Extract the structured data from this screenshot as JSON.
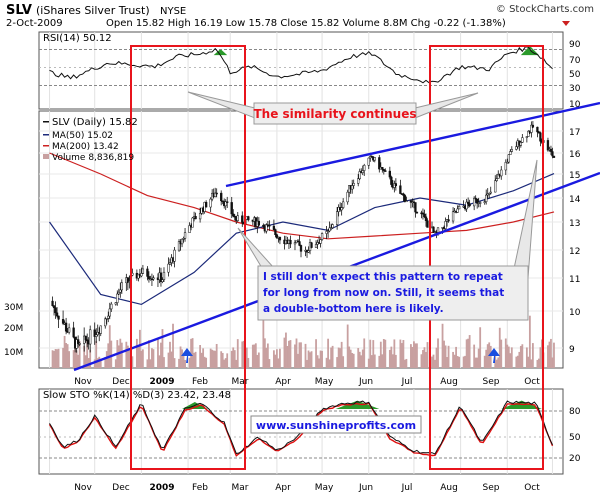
{
  "header": {
    "ticker": "SLV",
    "name": "(iShares Silver Trust)",
    "exchange": "NYSE",
    "watermark": "© StockCharts.com",
    "date": "2-Oct-2009",
    "quote": "Open 15.82  High 16.19  Low 15.78  Close 15.82  Volume 8.8M  Chg -0.22 (-1.38%)"
  },
  "rsi": {
    "label": "RSI(14) 50.12",
    "ticks": [
      "90",
      "70",
      "50",
      "30",
      "10"
    ]
  },
  "price": {
    "legend": {
      "main": "SLV (Daily) 15.82",
      "ma50": "MA(50) 15.02",
      "ma200": "MA(200) 13.42",
      "volume": "Volume 8,836,819"
    },
    "ticks": [
      "17",
      "16",
      "15",
      "14",
      "13",
      "12",
      "11",
      "10",
      "9"
    ],
    "volume_ticks": [
      "30M",
      "20M",
      "10M"
    ]
  },
  "sto": {
    "label": "Slow STO %K(14) %D(3) 23.42, 23.48",
    "ticks": [
      "80",
      "50",
      "20"
    ]
  },
  "months": [
    "Nov",
    "Dec",
    "2009",
    "Feb",
    "Mar",
    "Apr",
    "May",
    "Jun",
    "Jul",
    "Aug",
    "Sep",
    "Oct"
  ],
  "annotations": {
    "similarity": "The similarity continues",
    "comment_lines": [
      "I still don't expect this pattern to repeat",
      "for long from now on. Still, it seems that",
      "a double-bottom here is likely."
    ],
    "website": "www.sunshineprofits.com"
  },
  "colors": {
    "red_frame": "#e8141c",
    "trend_line": "#1a1ae0",
    "ma50": "#1c2a7a",
    "ma200": "#cc2020",
    "volume": "#c8a0a0",
    "arrow": "#1a4de0",
    "indicator_fill": "#2a9a2a",
    "sto_d": "#e01010"
  },
  "chart_data": {
    "type": "line",
    "title": "SLV (iShares Silver Trust) NYSE",
    "y_range": [
      8.6,
      17.6
    ],
    "price_series": [
      {
        "x": "2008-11-01",
        "close": 10.3
      },
      {
        "x": "2008-11-20",
        "close": 9.0
      },
      {
        "x": "2008-12-05",
        "close": 9.6
      },
      {
        "x": "2008-12-20",
        "close": 10.8
      },
      {
        "x": "2009-01-01",
        "close": 11.2
      },
      {
        "x": "2009-01-15",
        "close": 11.0
      },
      {
        "x": "2009-02-01",
        "close": 12.8
      },
      {
        "x": "2009-02-20",
        "close": 14.3
      },
      {
        "x": "2009-03-05",
        "close": 13.1
      },
      {
        "x": "2009-03-20",
        "close": 13.0
      },
      {
        "x": "2009-04-05",
        "close": 12.4
      },
      {
        "x": "2009-04-20",
        "close": 12.0
      },
      {
        "x": "2009-05-05",
        "close": 12.6
      },
      {
        "x": "2009-05-20",
        "close": 14.5
      },
      {
        "x": "2009-06-03",
        "close": 15.8
      },
      {
        "x": "2009-06-20",
        "close": 14.3
      },
      {
        "x": "2009-07-05",
        "close": 13.4
      },
      {
        "x": "2009-07-15",
        "close": 12.5
      },
      {
        "x": "2009-08-01",
        "close": 13.6
      },
      {
        "x": "2009-08-20",
        "close": 14.1
      },
      {
        "x": "2009-09-05",
        "close": 16.2
      },
      {
        "x": "2009-09-18",
        "close": 17.2
      },
      {
        "x": "2009-10-02",
        "close": 15.8
      }
    ],
    "ma50": [
      {
        "x": "2008-11-01",
        "y": 13.0
      },
      {
        "x": "2008-12-05",
        "y": 10.5
      },
      {
        "x": "2009-01-01",
        "y": 10.2
      },
      {
        "x": "2009-02-05",
        "y": 11.2
      },
      {
        "x": "2009-03-05",
        "y": 12.6
      },
      {
        "x": "2009-04-05",
        "y": 13.0
      },
      {
        "x": "2009-05-05",
        "y": 12.7
      },
      {
        "x": "2009-06-05",
        "y": 13.6
      },
      {
        "x": "2009-07-05",
        "y": 14.0
      },
      {
        "x": "2009-08-05",
        "y": 13.7
      },
      {
        "x": "2009-09-05",
        "y": 14.3
      },
      {
        "x": "2009-10-02",
        "y": 15.02
      }
    ],
    "ma200": [
      {
        "x": "2008-11-01",
        "y": 16.0
      },
      {
        "x": "2008-12-05",
        "y": 15.0
      },
      {
        "x": "2009-01-05",
        "y": 14.1
      },
      {
        "x": "2009-02-05",
        "y": 13.6
      },
      {
        "x": "2009-03-05",
        "y": 13.0
      },
      {
        "x": "2009-04-05",
        "y": 12.6
      },
      {
        "x": "2009-05-05",
        "y": 12.4
      },
      {
        "x": "2009-06-05",
        "y": 12.5
      },
      {
        "x": "2009-07-05",
        "y": 12.6
      },
      {
        "x": "2009-08-05",
        "y": 12.7
      },
      {
        "x": "2009-09-05",
        "y": 13.0
      },
      {
        "x": "2009-10-02",
        "y": 13.42
      }
    ],
    "rsi_series": [
      {
        "x": "2008-11-01",
        "y": 48
      },
      {
        "x": "2008-11-15",
        "y": 40
      },
      {
        "x": "2008-11-25",
        "y": 48
      },
      {
        "x": "2008-12-10",
        "y": 60
      },
      {
        "x": "2008-12-25",
        "y": 58
      },
      {
        "x": "2009-01-10",
        "y": 55
      },
      {
        "x": "2009-01-25",
        "y": 68
      },
      {
        "x": "2009-02-10",
        "y": 72
      },
      {
        "x": "2009-02-20",
        "y": 78
      },
      {
        "x": "2009-03-01",
        "y": 48
      },
      {
        "x": "2009-03-15",
        "y": 55
      },
      {
        "x": "2009-04-01",
        "y": 42
      },
      {
        "x": "2009-04-15",
        "y": 45
      },
      {
        "x": "2009-05-01",
        "y": 50
      },
      {
        "x": "2009-05-20",
        "y": 68
      },
      {
        "x": "2009-06-03",
        "y": 72
      },
      {
        "x": "2009-06-20",
        "y": 45
      },
      {
        "x": "2009-07-05",
        "y": 38
      },
      {
        "x": "2009-07-12",
        "y": 32
      },
      {
        "x": "2009-08-01",
        "y": 55
      },
      {
        "x": "2009-08-20",
        "y": 52
      },
      {
        "x": "2009-09-01",
        "y": 72
      },
      {
        "x": "2009-09-15",
        "y": 80
      },
      {
        "x": "2009-09-25",
        "y": 65
      },
      {
        "x": "2009-10-02",
        "y": 50.12
      }
    ],
    "sto_series": [
      {
        "x": "2008-11-01",
        "y": 60
      },
      {
        "x": "2008-11-10",
        "y": 25
      },
      {
        "x": "2008-11-20",
        "y": 35
      },
      {
        "x": "2008-12-01",
        "y": 70
      },
      {
        "x": "2008-12-15",
        "y": 25
      },
      {
        "x": "2009-01-01",
        "y": 88
      },
      {
        "x": "2009-01-15",
        "y": 20
      },
      {
        "x": "2009-01-30",
        "y": 80
      },
      {
        "x": "2009-02-10",
        "y": 88
      },
      {
        "x": "2009-02-25",
        "y": 60
      },
      {
        "x": "2009-03-05",
        "y": 15
      },
      {
        "x": "2009-03-20",
        "y": 40
      },
      {
        "x": "2009-04-01",
        "y": 20
      },
      {
        "x": "2009-04-15",
        "y": 40
      },
      {
        "x": "2009-05-01",
        "y": 80
      },
      {
        "x": "2009-05-15",
        "y": 88
      },
      {
        "x": "2009-06-01",
        "y": 90
      },
      {
        "x": "2009-06-15",
        "y": 40
      },
      {
        "x": "2009-07-01",
        "y": 20
      },
      {
        "x": "2009-07-15",
        "y": 15
      },
      {
        "x": "2009-08-01",
        "y": 85
      },
      {
        "x": "2009-08-15",
        "y": 30
      },
      {
        "x": "2009-09-01",
        "y": 90
      },
      {
        "x": "2009-09-20",
        "y": 88
      },
      {
        "x": "2009-10-02",
        "y": 23.42
      }
    ]
  }
}
